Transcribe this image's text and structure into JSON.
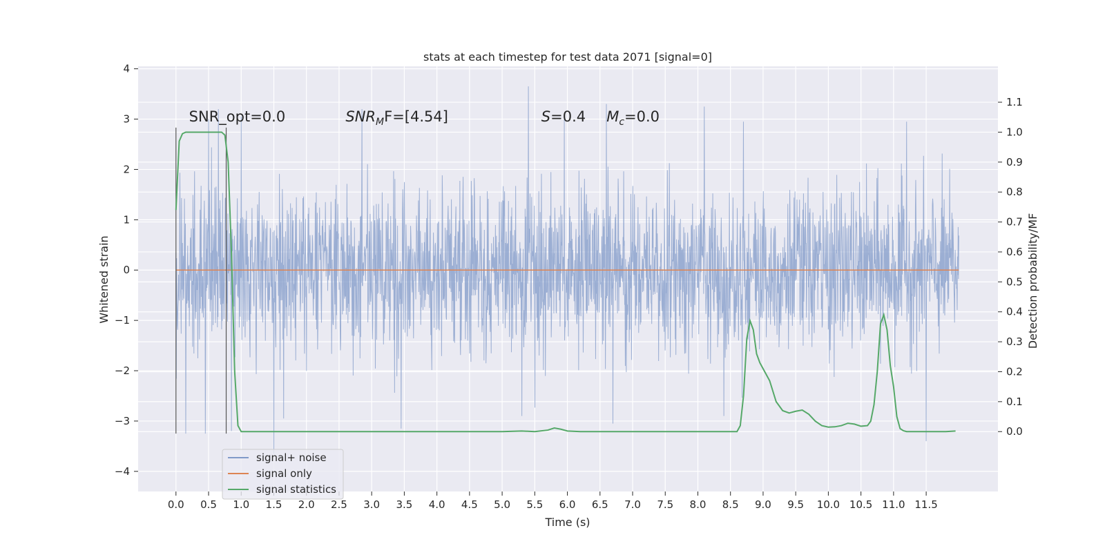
{
  "chart_data": {
    "type": "line",
    "title": "stats at each timestep for test data 2071 [signal=0]",
    "xlabel": "Time (s)",
    "ylabel_left": "Whitened strain",
    "ylabel_right": "Detection probability/MF",
    "xlim": [
      -0.58,
      12.6
    ],
    "ylim_left": [
      -4.4,
      4.05
    ],
    "ylim_right": [
      -0.2,
      1.22
    ],
    "x_ticks": [
      0.0,
      0.5,
      1.0,
      1.5,
      2.0,
      2.5,
      3.0,
      3.5,
      4.0,
      4.5,
      5.0,
      5.5,
      6.0,
      6.5,
      7.0,
      7.5,
      8.0,
      8.5,
      9.0,
      9.5,
      10.0,
      10.5,
      11.0,
      11.5
    ],
    "x_tick_labels": [
      "0.0",
      "0.5",
      "1.0",
      "1.5",
      "2.0",
      "2.5",
      "3.0",
      "3.5",
      "4.0",
      "4.5",
      "5.0",
      "5.5",
      "6.0",
      "6.5",
      "7.0",
      "7.5",
      "8.0",
      "8.5",
      "9.0",
      "9.5",
      "10.0",
      "10.5",
      "11.0",
      "11.5"
    ],
    "y_left_ticks": [
      4,
      3,
      2,
      1,
      0,
      -1,
      -2,
      -3,
      -4
    ],
    "y_left_tick_labels": [
      "4",
      "3",
      "2",
      "1",
      "0",
      "−1",
      "−2",
      "−3",
      "−4"
    ],
    "y_right_ticks": [
      1.1,
      1.0,
      0.9,
      0.8,
      0.7,
      0.6,
      0.5,
      0.4,
      0.3,
      0.2,
      0.1,
      0.0
    ],
    "y_right_tick_labels": [
      "1.1",
      "1.0",
      "0.9",
      "0.8",
      "0.7",
      "0.6",
      "0.5",
      "0.4",
      "0.3",
      "0.2",
      "0.1",
      "0.0"
    ],
    "grid": true,
    "legend_position": "lower-left",
    "series": [
      {
        "name": "signal+ noise",
        "axis": "left",
        "color": "#8099c8",
        "t_range": [
          0.0,
          12.0
        ],
        "envelope_typical": [
          -1.5,
          1.6
        ],
        "peak_upper": [
          [
            0.5,
            3.0
          ],
          [
            0.65,
            3.2
          ],
          [
            1.0,
            3.05
          ],
          [
            2.85,
            3.2
          ],
          [
            5.4,
            3.65
          ],
          [
            5.95,
            3.0
          ],
          [
            6.6,
            3.3
          ],
          [
            8.1,
            3.25
          ],
          [
            8.7,
            2.95
          ],
          [
            11.2,
            2.95
          ]
        ],
        "peak_lower": [
          [
            0.15,
            -3.25
          ],
          [
            0.45,
            -3.25
          ],
          [
            0.85,
            -3.2
          ],
          [
            1.5,
            -3.65
          ],
          [
            1.65,
            -2.95
          ],
          [
            3.45,
            -3.15
          ],
          [
            5.3,
            -2.9
          ],
          [
            6.7,
            -3.05
          ],
          [
            8.4,
            -2.9
          ],
          [
            11.5,
            -3.4
          ]
        ]
      },
      {
        "name": "signal only",
        "axis": "left",
        "color": "#dd8452",
        "x": [
          0.0,
          12.0
        ],
        "y": [
          0.0,
          0.0
        ]
      },
      {
        "name": "signal statistics",
        "axis": "right",
        "color": "#55a868",
        "x": [
          0.0,
          0.05,
          0.1,
          0.15,
          0.2,
          0.3,
          0.4,
          0.5,
          0.6,
          0.65,
          0.7,
          0.75,
          0.8,
          0.85,
          0.9,
          0.95,
          1.0,
          1.1,
          1.5,
          2.0,
          3.0,
          3.5,
          4.0,
          5.0,
          5.3,
          5.5,
          5.7,
          5.8,
          5.9,
          6.0,
          6.2,
          7.0,
          8.0,
          8.6,
          8.65,
          8.7,
          8.75,
          8.8,
          8.85,
          8.9,
          8.95,
          9.0,
          9.1,
          9.2,
          9.3,
          9.4,
          9.5,
          9.6,
          9.7,
          9.8,
          9.9,
          10.0,
          10.1,
          10.2,
          10.3,
          10.4,
          10.5,
          10.6,
          10.65,
          10.7,
          10.75,
          10.8,
          10.85,
          10.9,
          10.95,
          11.0,
          11.05,
          11.1,
          11.15,
          11.2,
          11.3,
          11.5,
          11.8,
          11.95
        ],
        "y": [
          0.74,
          0.97,
          0.995,
          1.0,
          1.0,
          1.0,
          1.0,
          1.0,
          1.0,
          1.0,
          1.0,
          0.99,
          0.9,
          0.6,
          0.2,
          0.02,
          0.0,
          0.0,
          0.0,
          0.0,
          0.0,
          0.0,
          0.0,
          0.0,
          0.002,
          0.0,
          0.005,
          0.012,
          0.008,
          0.002,
          0.0,
          0.0,
          0.0,
          0.0,
          0.02,
          0.12,
          0.31,
          0.37,
          0.34,
          0.26,
          0.23,
          0.21,
          0.17,
          0.1,
          0.07,
          0.062,
          0.068,
          0.072,
          0.058,
          0.035,
          0.02,
          0.015,
          0.016,
          0.02,
          0.028,
          0.025,
          0.018,
          0.02,
          0.035,
          0.09,
          0.2,
          0.36,
          0.39,
          0.34,
          0.22,
          0.15,
          0.05,
          0.01,
          0.003,
          0.0,
          0.0,
          0.0,
          0.0,
          0.002
        ]
      }
    ],
    "vertical_markers": {
      "color": "#555555",
      "x": [
        0.0,
        0.77
      ],
      "y_range_left": [
        -3.25,
        2.83
      ]
    },
    "annotations": [
      {
        "text": "SNR_opt=0.0",
        "x": 0.2,
        "y": 2.95
      },
      {
        "text": "SNR",
        "sub": "M",
        "rest": "F=[4.54]",
        "italic": true,
        "x": 2.6,
        "y": 2.95
      },
      {
        "text": "S",
        "rest": "=0.4",
        "italic": true,
        "x": 5.6,
        "y": 2.95
      },
      {
        "text": "M",
        "sub": "c",
        "rest": "=0.0",
        "italic": true,
        "x": 6.6,
        "y": 2.95
      }
    ]
  },
  "legend": {
    "items": [
      {
        "label": "signal+ noise",
        "color": "#8099c8"
      },
      {
        "label": "signal only",
        "color": "#dd8452"
      },
      {
        "label": "signal statistics",
        "color": "#55a868"
      }
    ]
  }
}
